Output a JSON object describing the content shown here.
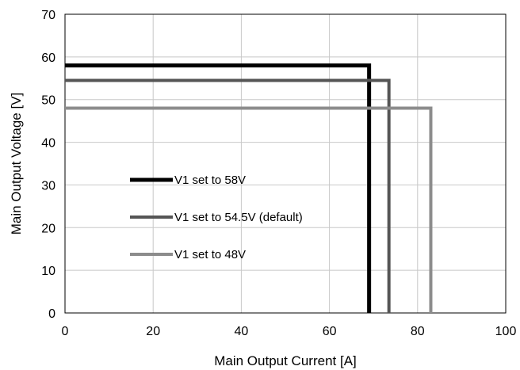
{
  "chart_data": {
    "type": "line",
    "title": "",
    "xlabel": "Main Output Current [A]",
    "ylabel": "Main Output Voltage [V]",
    "xlim": [
      0,
      100
    ],
    "ylim": [
      0,
      70
    ],
    "xticks": [
      0,
      20,
      40,
      60,
      80,
      100
    ],
    "yticks": [
      0,
      10,
      20,
      30,
      40,
      50,
      60,
      70
    ],
    "xtick_labels": [
      "0",
      "20",
      "40",
      "60",
      "80",
      "100"
    ],
    "ytick_labels": [
      "0",
      "10",
      "20",
      "30",
      "40",
      "50",
      "60",
      "70"
    ],
    "grid": true,
    "legend_position": "center-left",
    "series": [
      {
        "name": "V1 set to 58V",
        "color": "#000000",
        "x": [
          0,
          69,
          69
        ],
        "y": [
          58,
          58,
          0
        ]
      },
      {
        "name": "V1 set to 54.5V (default)",
        "color": "#555555",
        "x": [
          0,
          73.5,
          73.5
        ],
        "y": [
          54.5,
          54.5,
          0
        ]
      },
      {
        "name": "V1 set to 48V",
        "color": "#8c8c8c",
        "x": [
          0,
          83,
          83
        ],
        "y": [
          48,
          48,
          0
        ]
      }
    ]
  }
}
